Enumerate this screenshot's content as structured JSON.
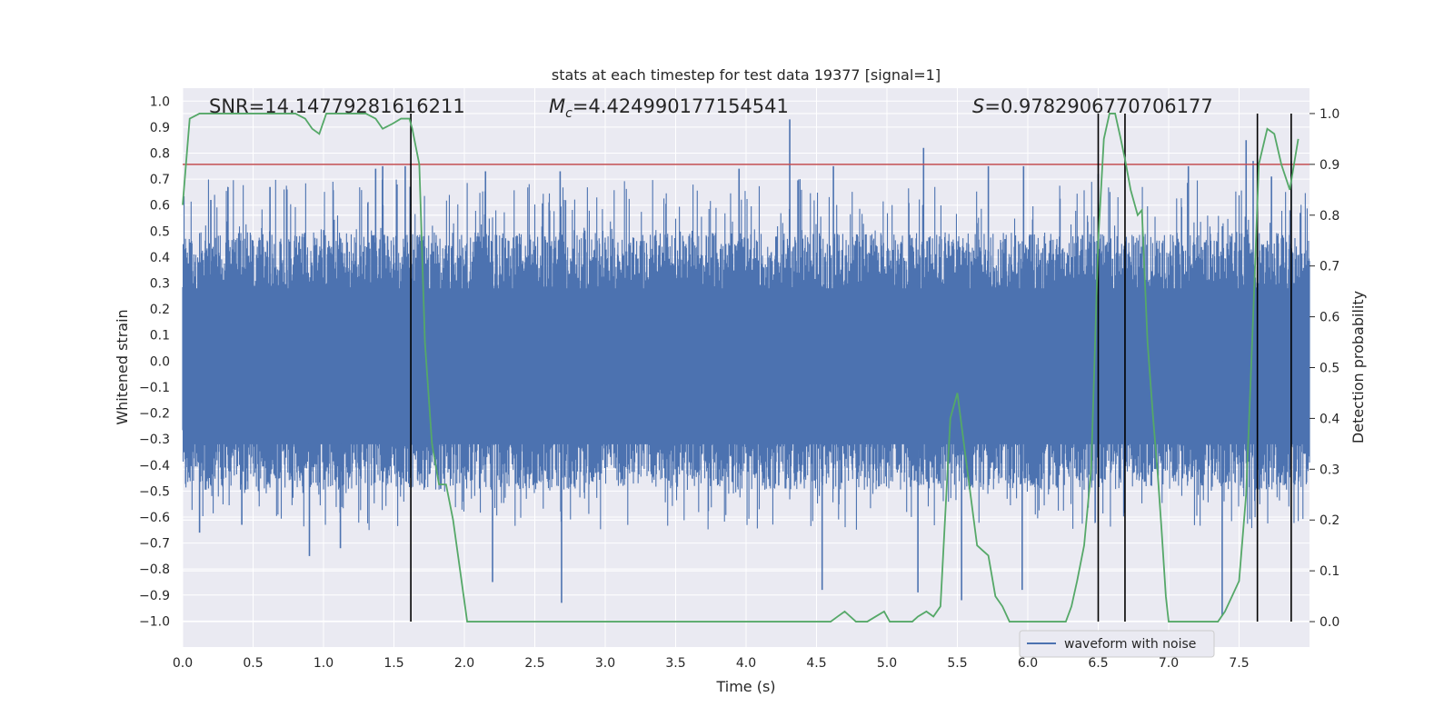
{
  "chart_data": {
    "type": "line",
    "title": "stats at each timestep for test data 19377 [signal=1]",
    "xlabel": "Time (s)",
    "ylabel": "Whitened strain",
    "y2label": "Detection probability",
    "xlim": [
      0.0,
      8.0
    ],
    "ylim": [
      -1.1,
      1.05
    ],
    "y2lim": [
      -0.05,
      1.05
    ],
    "xticks": [
      "0.0",
      "0.5",
      "1.0",
      "1.5",
      "2.0",
      "2.5",
      "3.0",
      "3.5",
      "4.0",
      "4.5",
      "5.0",
      "5.5",
      "6.0",
      "6.5",
      "7.0",
      "7.5"
    ],
    "yticks": [
      "1.0",
      "0.9",
      "0.8",
      "0.7",
      "0.6",
      "0.5",
      "0.4",
      "0.3",
      "0.2",
      "0.1",
      "0.0",
      "−0.1",
      "−0.2",
      "−0.3",
      "−0.4",
      "−0.5",
      "−0.6",
      "−0.7",
      "−0.8",
      "−0.9",
      "−1.0"
    ],
    "y2ticks": [
      "1.0",
      "0.9",
      "0.8",
      "0.7",
      "0.6",
      "0.5",
      "0.4",
      "0.3",
      "0.2",
      "0.1",
      "0.0"
    ],
    "grid": true,
    "legend": {
      "position": "lower-center-right",
      "entries": [
        "waveform with noise"
      ]
    },
    "annotations": {
      "snr": "SNR=14.14779281616211",
      "mc_symbol": "M",
      "mc_sub": "c",
      "mc_value": "=4.424990177154541",
      "s_symbol": "S",
      "s_value": "=0.9782906770706177"
    },
    "threshold": {
      "y2": 0.9,
      "color": "#c44e52"
    },
    "vertical_lines": [
      1.62,
      6.5,
      6.69,
      7.63,
      7.87
    ],
    "waveform": {
      "name": "waveform with noise",
      "color": "#4c72b0",
      "envelope_typical": [
        -0.45,
        0.45
      ],
      "spikes": [
        [
          0.12,
          -0.66
        ],
        [
          0.2,
          0.62
        ],
        [
          0.42,
          -0.63
        ],
        [
          0.62,
          0.67
        ],
        [
          0.74,
          0.66
        ],
        [
          0.9,
          -0.75
        ],
        [
          1.12,
          -0.72
        ],
        [
          1.37,
          0.74
        ],
        [
          1.42,
          0.75
        ],
        [
          1.58,
          0.75
        ],
        [
          2.15,
          0.73
        ],
        [
          2.2,
          -0.85
        ],
        [
          2.69,
          -0.93
        ],
        [
          2.68,
          0.73
        ],
        [
          3.95,
          0.74
        ],
        [
          4.31,
          0.93
        ],
        [
          4.54,
          -0.88
        ],
        [
          4.62,
          0.75
        ],
        [
          5.22,
          -0.89
        ],
        [
          5.26,
          0.82
        ],
        [
          5.53,
          -0.92
        ],
        [
          5.72,
          0.75
        ],
        [
          5.97,
          0.75
        ],
        [
          5.96,
          -0.88
        ],
        [
          6.5,
          0.72
        ],
        [
          7.14,
          0.75
        ],
        [
          7.38,
          -0.98
        ],
        [
          7.55,
          0.85
        ],
        [
          7.6,
          0.77
        ],
        [
          7.73,
          0.71
        ],
        [
          7.87,
          0.77
        ]
      ]
    },
    "probability": {
      "color": "#55a868",
      "x": [
        0.0,
        0.05,
        0.12,
        0.2,
        0.4,
        0.6,
        0.8,
        0.87,
        0.92,
        0.97,
        1.02,
        1.07,
        1.12,
        1.2,
        1.3,
        1.37,
        1.42,
        1.49,
        1.55,
        1.61,
        1.63,
        1.68,
        1.72,
        1.77,
        1.82,
        1.87,
        1.92,
        1.97,
        2.02,
        2.08,
        2.15,
        2.22,
        2.3,
        2.38,
        2.45,
        2.55,
        2.62,
        2.7,
        2.8,
        2.9,
        3.0,
        3.1,
        3.2,
        3.3,
        3.4,
        3.5,
        3.6,
        3.7,
        3.8,
        3.9,
        4.0,
        4.1,
        4.2,
        4.3,
        4.4,
        4.5,
        4.6,
        4.65,
        4.7,
        4.78,
        4.82,
        4.86,
        4.92,
        4.98,
        5.02,
        5.1,
        5.18,
        5.22,
        5.28,
        5.33,
        5.38,
        5.45,
        5.5,
        5.57,
        5.64,
        5.68,
        5.72,
        5.77,
        5.82,
        5.87,
        5.92,
        5.97,
        6.05,
        6.1,
        6.16,
        6.22,
        6.27,
        6.31,
        6.35,
        6.4,
        6.45,
        6.5,
        6.54,
        6.58,
        6.62,
        6.66,
        6.69,
        6.73,
        6.78,
        6.81,
        6.85,
        6.89,
        6.92,
        6.95,
        6.98,
        7.0,
        7.05,
        7.1,
        7.2,
        7.28,
        7.35,
        7.4,
        7.45,
        7.5,
        7.55,
        7.6,
        7.64,
        7.7,
        7.75,
        7.8,
        7.86,
        7.92
      ],
      "y": [
        0.82,
        0.99,
        1.0,
        1.0,
        1.0,
        1.0,
        1.0,
        0.99,
        0.97,
        0.96,
        1.0,
        1.0,
        1.0,
        1.0,
        1.0,
        0.99,
        0.97,
        0.98,
        0.99,
        0.99,
        0.97,
        0.9,
        0.55,
        0.35,
        0.27,
        0.27,
        0.2,
        0.1,
        0.0,
        0.0,
        0.0,
        0.0,
        0.0,
        0.0,
        0.0,
        0.0,
        0.0,
        0.0,
        0.0,
        0.0,
        0.0,
        0.0,
        0.0,
        0.0,
        0.0,
        0.0,
        0.0,
        0.0,
        0.0,
        0.0,
        0.0,
        0.0,
        0.0,
        0.0,
        0.0,
        0.0,
        0.0,
        0.01,
        0.02,
        0.0,
        0.0,
        0.0,
        0.01,
        0.02,
        0.0,
        0.0,
        0.0,
        0.01,
        0.02,
        0.01,
        0.03,
        0.4,
        0.45,
        0.3,
        0.15,
        0.14,
        0.13,
        0.05,
        0.03,
        0.0,
        0.0,
        0.0,
        0.0,
        0.0,
        0.0,
        0.0,
        0.0,
        0.03,
        0.08,
        0.15,
        0.3,
        0.75,
        0.95,
        1.0,
        1.0,
        0.95,
        0.91,
        0.85,
        0.8,
        0.81,
        0.55,
        0.4,
        0.3,
        0.18,
        0.05,
        0.0,
        0.0,
        0.0,
        0.0,
        0.0,
        0.0,
        0.02,
        0.05,
        0.08,
        0.25,
        0.6,
        0.9,
        0.97,
        0.96,
        0.9,
        0.85,
        0.95
      ]
    }
  }
}
